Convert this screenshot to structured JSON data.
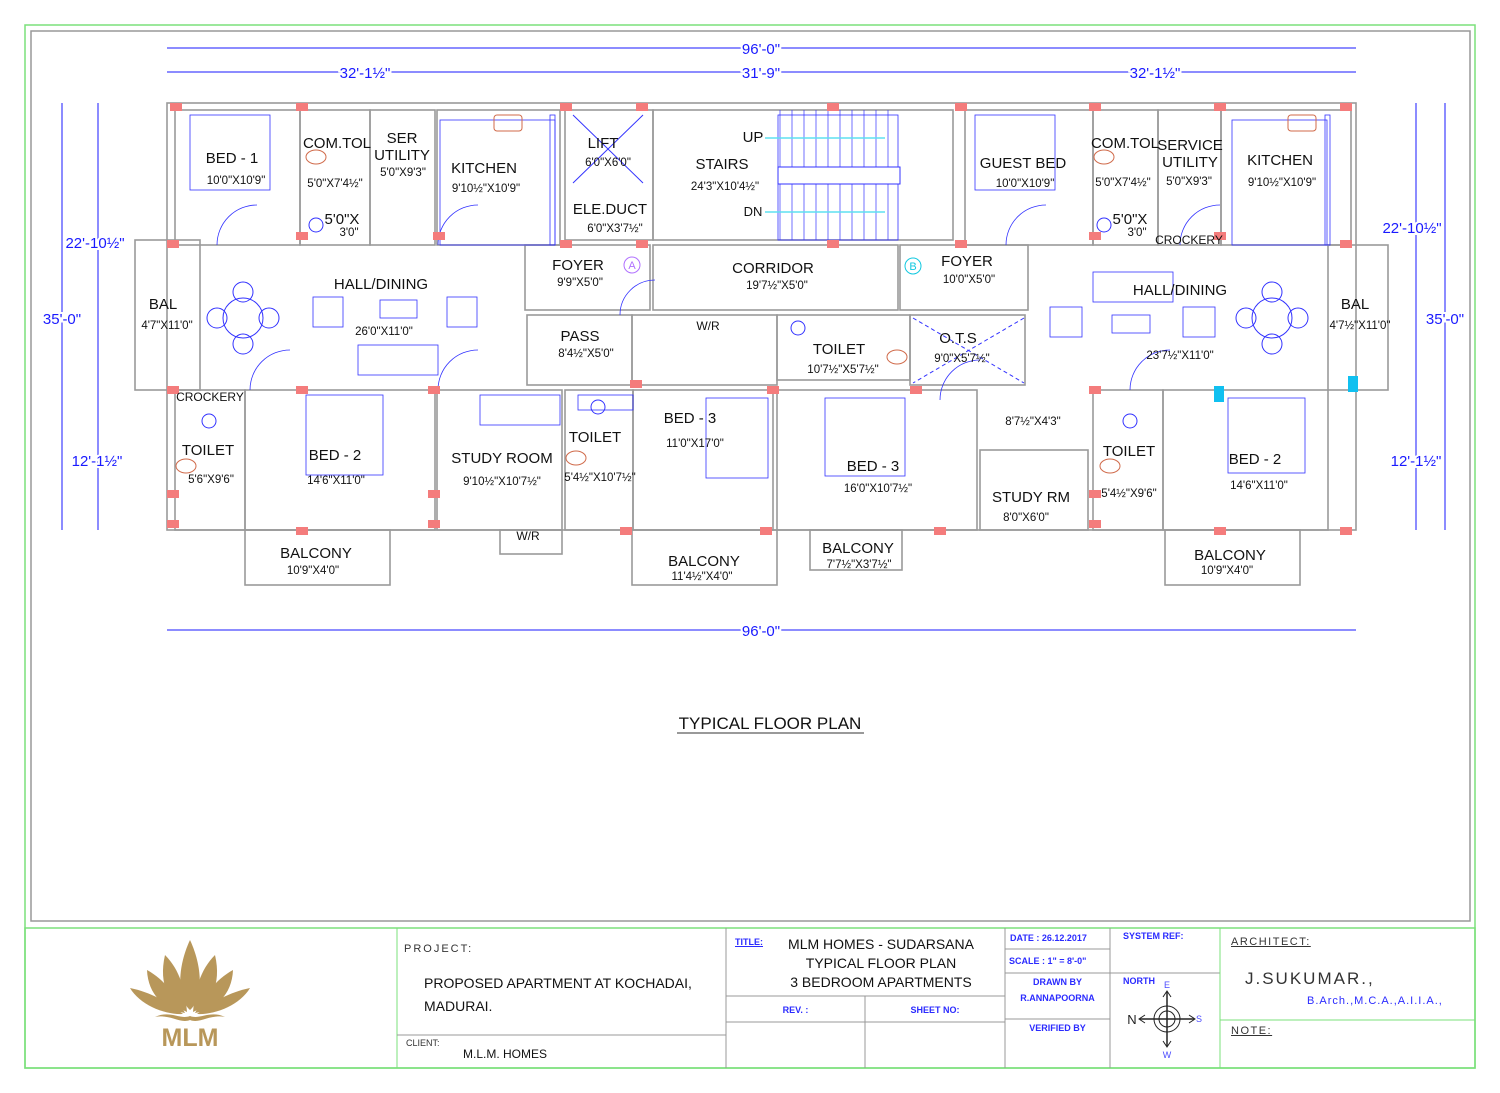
{
  "plan": {
    "caption": "TYPICAL FLOOR PLAN",
    "rooms": [
      {
        "lines": [
          "BED - 1"
        ],
        "size": "10'0\"X10'9\""
      },
      {
        "lines": [
          "COM.TOL"
        ],
        "size": "5'0\"X7'4½\""
      },
      {
        "lines": [
          "SER",
          "UTILITY"
        ],
        "size": "5'0\"X9'3\""
      },
      {
        "lines": [
          "KITCHEN"
        ],
        "size": "9'10½\"X10'9\""
      },
      {
        "lines": [
          "5'0\"X"
        ],
        "size": "3'0\""
      },
      {
        "lines": [
          "LIFT"
        ],
        "size": "6'0\"X6'0\""
      },
      {
        "lines": [
          "STAIRS"
        ],
        "size": "24'3\"X10'4½\""
      },
      {
        "lines": [
          "UP"
        ],
        "size": "DN"
      },
      {
        "lines": [
          "ELE.DUCT"
        ],
        "size": "6'0\"X3'7½\""
      },
      {
        "lines": [
          "GUEST BED"
        ],
        "size": "10'0\"X10'9\""
      },
      {
        "lines": [
          "COM.TOL"
        ],
        "size": "5'0\"X7'4½\""
      },
      {
        "lines": [
          "SERVICE",
          "UTILITY"
        ],
        "size": "5'0\"X9'3\""
      },
      {
        "lines": [
          "KITCHEN"
        ],
        "size": "9'10½\"X10'9\""
      },
      {
        "lines": [
          "5'0\"X"
        ],
        "size": "3'0\""
      },
      {
        "lines": [
          "CROCKERY"
        ],
        "size": ""
      },
      {
        "lines": [
          "BAL"
        ],
        "size": "4'7\"X11'0\""
      },
      {
        "lines": [
          "HALL/DINING"
        ],
        "size": "26'0\"X11'0\""
      },
      {
        "lines": [
          "FOYER"
        ],
        "size": "9'9\"X5'0\""
      },
      {
        "lines": [
          "CORRIDOR"
        ],
        "size": "19'7½\"X5'0\""
      },
      {
        "lines": [
          "FOYER"
        ],
        "size": "10'0\"X5'0\""
      },
      {
        "lines": [
          "HALL/DINING"
        ],
        "size": "23'7½\"X11'0\""
      },
      {
        "lines": [
          "BAL"
        ],
        "size": "4'7½\"X11'0\""
      },
      {
        "lines": [
          "PASS"
        ],
        "size": "8'4½\"X5'0\""
      },
      {
        "lines": [
          "W/R"
        ],
        "size": ""
      },
      {
        "lines": [
          "TOILET"
        ],
        "size": "10'7½\"X5'7½\""
      },
      {
        "lines": [
          "O.T.S"
        ],
        "size": "9'0\"X5'7½\""
      },
      {
        "lines": [
          "CROCKERY"
        ],
        "size": ""
      },
      {
        "lines": [
          "TOILET"
        ],
        "size": "5'6\"X9'6\""
      },
      {
        "lines": [
          "BED - 2"
        ],
        "size": "14'6\"X11'0\""
      },
      {
        "lines": [
          "STUDY ROOM"
        ],
        "size": "9'10½\"X10'7½\""
      },
      {
        "lines": [
          "TOILET"
        ],
        "size": "5'4½\"X10'7½\""
      },
      {
        "lines": [
          "BED - 3"
        ],
        "size": "11'0\"X17'0\""
      },
      {
        "lines": [
          "W/R"
        ],
        "size": ""
      },
      {
        "lines": [
          "BED - 3"
        ],
        "size": "16'0\"X10'7½\""
      },
      {
        "lines": [],
        "size": "8'7½\"X4'3\""
      },
      {
        "lines": [
          "STUDY RM"
        ],
        "size": "8'0\"X6'0\""
      },
      {
        "lines": [
          "TOILET"
        ],
        "size": "5'4½\"X9'6\""
      },
      {
        "lines": [
          "BED - 2"
        ],
        "size": "14'6\"X11'0\""
      },
      {
        "lines": [
          "BALCONY"
        ],
        "size": "10'9\"X4'0\""
      },
      {
        "lines": [
          "BALCONY"
        ],
        "size": "11'4½\"X4'0\""
      },
      {
        "lines": [
          "BALCONY"
        ],
        "size": "7'7½\"X3'7½\""
      },
      {
        "lines": [
          "BALCONY"
        ],
        "size": "10'9\"X4'0\""
      }
    ],
    "door_markers": [
      "A",
      "B"
    ],
    "dimensions": [
      "96'-0\"",
      "32'-1½\"",
      "31'-9\"",
      "32'-1½\"",
      "22'-10½\"",
      "35'-0\"",
      "12'-1½\"",
      "22'-10½\"",
      "35'-0\"",
      "12'-1½\"",
      "96'-0\""
    ],
    "colors": {
      "wall": "#9a9a9a",
      "column": "#f47c7c",
      "furniture": "#3333ff",
      "dimension": "#1a1aff",
      "fixture": "#d06a4a",
      "border": "#7be07b"
    }
  },
  "title_block": {
    "logo_text": "MLM",
    "project_label": "PROJECT:",
    "project_lines": [
      "PROPOSED APARTMENT AT KOCHADAI,",
      "MADURAI."
    ],
    "client_label": "CLIENT:",
    "client": "M.L.M. HOMES",
    "title_label": "TITLE:",
    "title_lines": [
      "MLM HOMES - SUDARSANA",
      "TYPICAL FLOOR PLAN",
      "3 BEDROOM APARTMENTS"
    ],
    "rev_label": "REV. :",
    "sheet_label": "SHEET NO:",
    "date": "DATE : 26.12.2017",
    "scale": "SCALE : 1\" = 8'-0\"",
    "drawn_by_label": "DRAWN BY",
    "drawn_by": "R.ANNAPOORNA",
    "verified_by_label": "VERIFIED BY",
    "system_ref_label": "SYSTEM REF:",
    "north_label": "NORTH",
    "compass": {
      "e": "E",
      "w": "W",
      "n": "N",
      "s": "S"
    },
    "architect_label": "ARCHITECT:",
    "architect": "J.SUKUMAR.,",
    "qualifications": "B.Arch.,M.C.A.,A.I.I.A.,",
    "note_label": "NOTE:"
  }
}
